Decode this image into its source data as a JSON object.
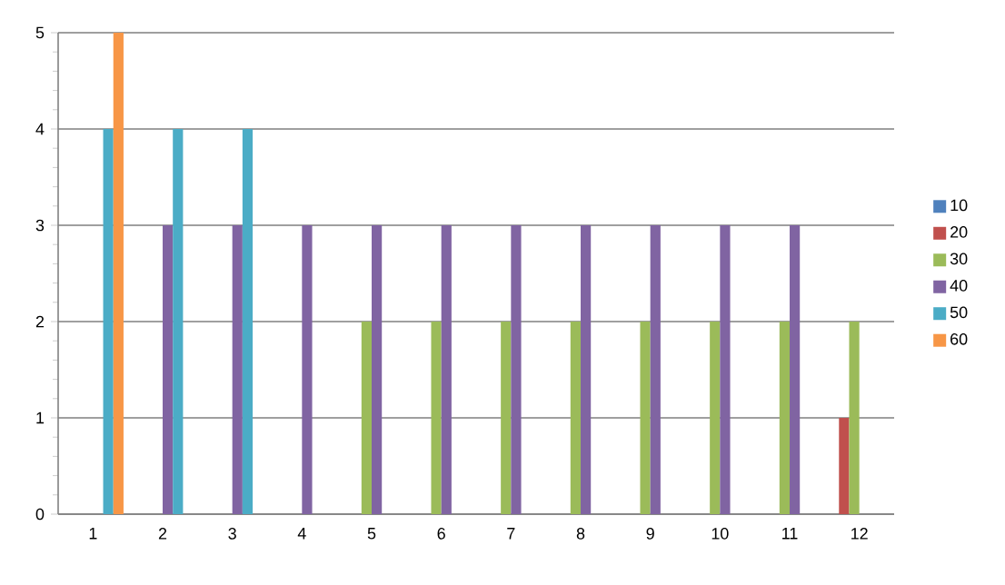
{
  "chart_data": {
    "type": "bar",
    "categories": [
      "1",
      "2",
      "3",
      "4",
      "5",
      "6",
      "7",
      "8",
      "9",
      "10",
      "11",
      "12"
    ],
    "series": [
      {
        "name": "10",
        "color": "#4f81bd",
        "values": [
          null,
          null,
          null,
          null,
          null,
          null,
          null,
          null,
          null,
          null,
          null,
          null
        ]
      },
      {
        "name": "20",
        "color": "#c0504d",
        "values": [
          null,
          null,
          null,
          null,
          null,
          null,
          null,
          null,
          null,
          null,
          null,
          1
        ]
      },
      {
        "name": "30",
        "color": "#9bbb59",
        "values": [
          null,
          null,
          null,
          null,
          2,
          2,
          2,
          2,
          2,
          2,
          2,
          2
        ]
      },
      {
        "name": "40",
        "color": "#8064a2",
        "values": [
          null,
          3,
          3,
          3,
          3,
          3,
          3,
          3,
          3,
          3,
          3,
          null
        ]
      },
      {
        "name": "50",
        "color": "#4bacc6",
        "values": [
          4,
          4,
          4,
          null,
          null,
          null,
          null,
          null,
          null,
          null,
          null,
          null
        ]
      },
      {
        "name": "60",
        "color": "#f79646",
        "values": [
          5,
          null,
          null,
          null,
          null,
          null,
          null,
          null,
          null,
          null,
          null,
          null
        ]
      }
    ],
    "ylim": [
      0,
      5
    ],
    "yticks": [
      0,
      1,
      2,
      3,
      4,
      5
    ],
    "grid": "y",
    "legend": "right"
  }
}
